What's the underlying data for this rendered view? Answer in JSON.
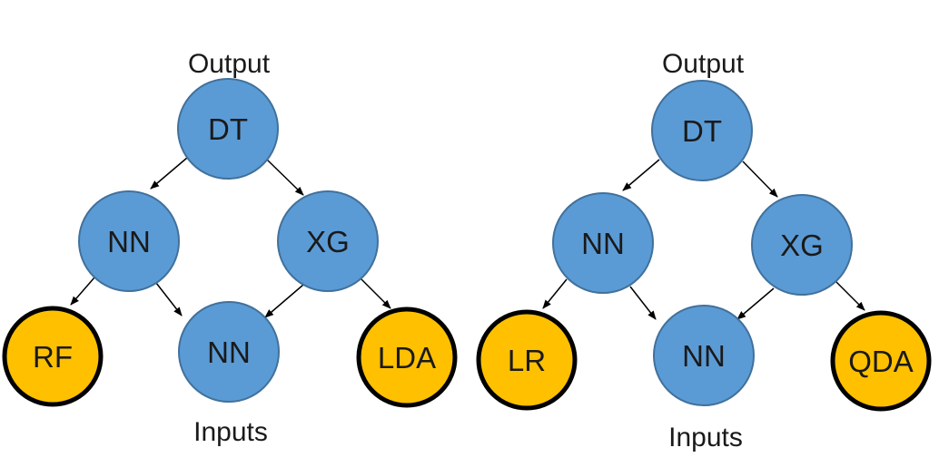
{
  "colors": {
    "internal_fill": "#5B9BD5",
    "internal_stroke": "#41719C",
    "leaf_fill": "#FFC000",
    "leaf_stroke": "#000000",
    "edge": "#000000"
  },
  "trees": [
    {
      "output_label": "Output",
      "inputs_label": "Inputs",
      "nodes": [
        {
          "label": "DT",
          "kind": "internal"
        },
        {
          "label": "NN",
          "kind": "internal"
        },
        {
          "label": "XG",
          "kind": "internal"
        },
        {
          "label": "RF",
          "kind": "leaf"
        },
        {
          "label": "NN",
          "kind": "internal"
        },
        {
          "label": "LDA",
          "kind": "leaf"
        }
      ]
    },
    {
      "output_label": "Output",
      "inputs_label": "Inputs",
      "nodes": [
        {
          "label": "DT",
          "kind": "internal"
        },
        {
          "label": "NN",
          "kind": "internal"
        },
        {
          "label": "XG",
          "kind": "internal"
        },
        {
          "label": "LR",
          "kind": "leaf"
        },
        {
          "label": "NN",
          "kind": "internal"
        },
        {
          "label": "QDA",
          "kind": "leaf"
        }
      ]
    }
  ]
}
